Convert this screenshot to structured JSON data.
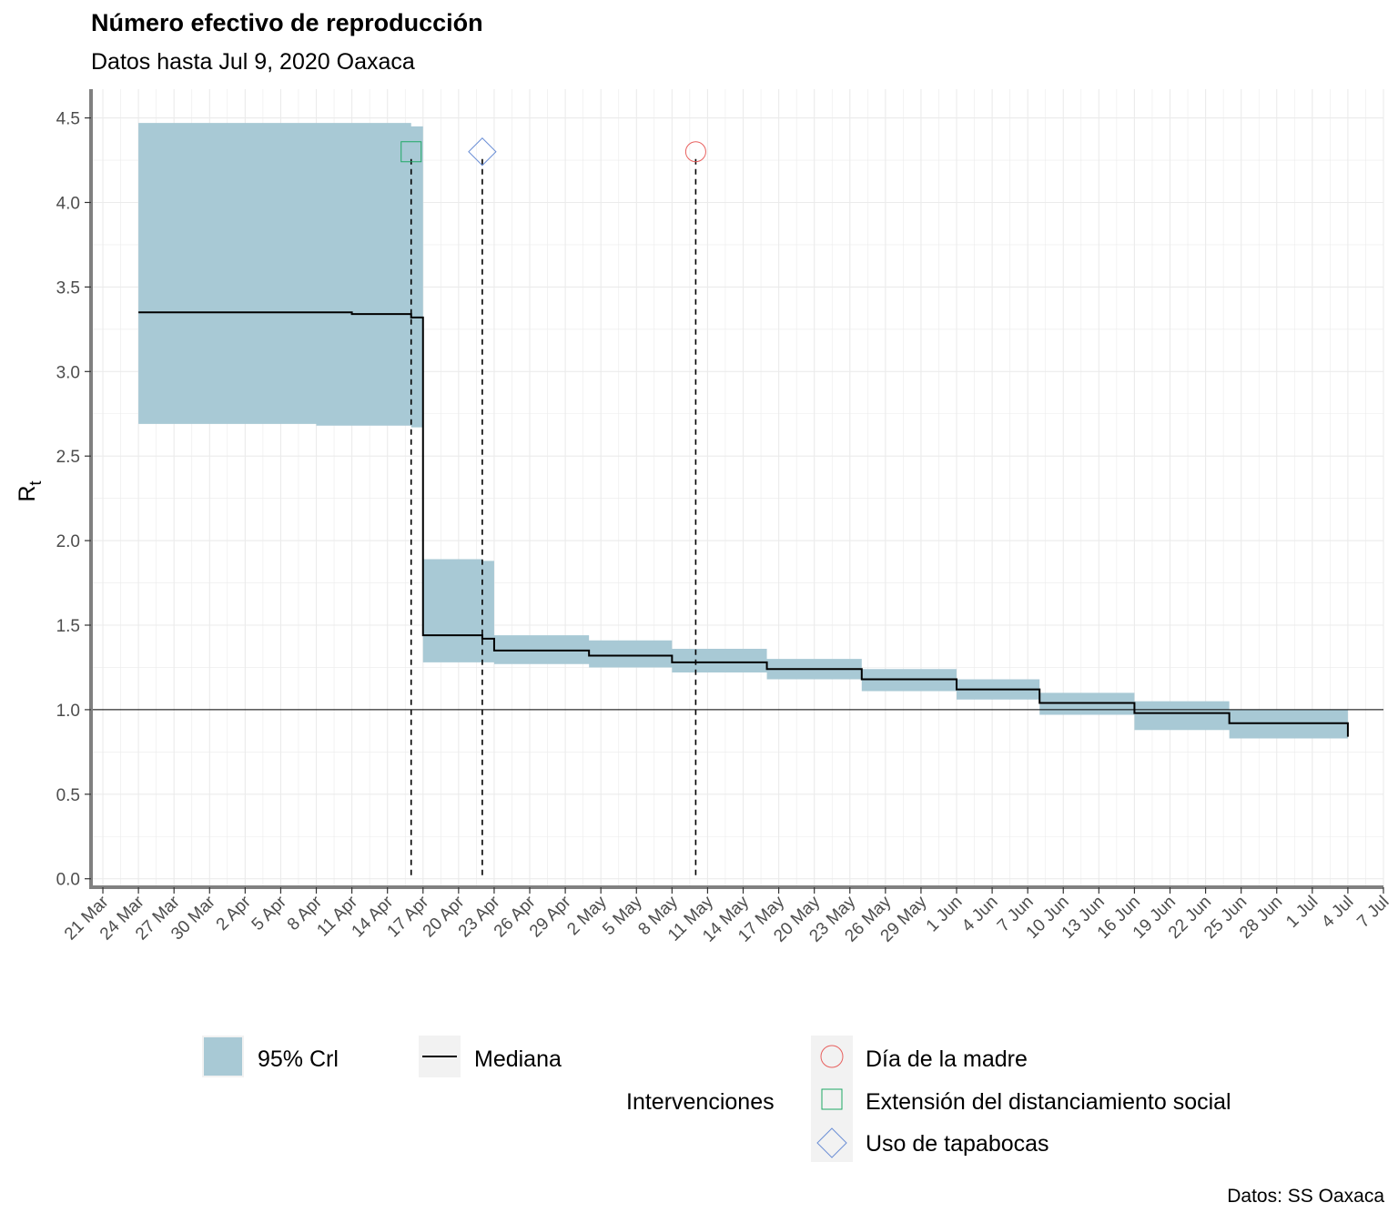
{
  "title": "Número efectivo de reproducción",
  "subtitle": "Datos hasta Jul  9, 2020 Oaxaca",
  "caption": "Datos: SS Oaxaca",
  "colors": {
    "ribbon": "#a8c9d5",
    "median": "#000000",
    "grid": "#ebebeb",
    "axis": "#808080",
    "madre": "#e8605e",
    "distanciamiento": "#1fa864",
    "tapabocas": "#6b8fd6"
  },
  "legend": {
    "ribbon_label": "95% Crl",
    "median_label": "Mediana",
    "interventions_title": "Intervenciones",
    "items": [
      "Día de la madre",
      "Extensión del distanciamiento social",
      "Uso de tapabocas"
    ]
  },
  "chart_data": {
    "type": "line",
    "ylabel": "R",
    "ylabel_subscript": "t",
    "xlabel": "",
    "ylim": [
      -0.05,
      4.67
    ],
    "xlim": [
      "2020-03-20",
      "2020-07-07"
    ],
    "y_ticks": [
      "0.0",
      "0.5",
      "1.0",
      "1.5",
      "2.0",
      "2.5",
      "3.0",
      "3.5",
      "4.0",
      "4.5"
    ],
    "x_ticks": [
      "21 Mar",
      "24 Mar",
      "27 Mar",
      "30 Mar",
      "2 Apr",
      "5 Apr",
      "8 Apr",
      "11 Apr",
      "14 Apr",
      "17 Apr",
      "20 Apr",
      "23 Apr",
      "26 Apr",
      "29 Apr",
      "2 May",
      "5 May",
      "8 May",
      "11 May",
      "14 May",
      "17 May",
      "20 May",
      "23 May",
      "26 May",
      "29 May",
      "1 Jun",
      "4 Jun",
      "7 Jun",
      "10 Jun",
      "13 Jun",
      "16 Jun",
      "19 Jun",
      "22 Jun",
      "25 Jun",
      "28 Jun",
      "1 Jul",
      "4 Jul",
      "7 Jul"
    ],
    "x_tick_dates": [
      "2020-03-21",
      "2020-03-24",
      "2020-03-27",
      "2020-03-30",
      "2020-04-02",
      "2020-04-05",
      "2020-04-08",
      "2020-04-11",
      "2020-04-14",
      "2020-04-17",
      "2020-04-20",
      "2020-04-23",
      "2020-04-26",
      "2020-04-29",
      "2020-05-02",
      "2020-05-05",
      "2020-05-08",
      "2020-05-11",
      "2020-05-14",
      "2020-05-17",
      "2020-05-20",
      "2020-05-23",
      "2020-05-26",
      "2020-05-29",
      "2020-06-01",
      "2020-06-04",
      "2020-06-07",
      "2020-06-10",
      "2020-06-13",
      "2020-06-16",
      "2020-06-19",
      "2020-06-22",
      "2020-06-25",
      "2020-06-28",
      "2020-07-01",
      "2020-07-04",
      "2020-07-07"
    ],
    "reference_line": 1.0,
    "series": [
      {
        "name": "Mediana",
        "x": [
          "2020-03-24",
          "2020-04-02",
          "2020-04-08",
          "2020-04-11",
          "2020-04-16",
          "2020-04-17",
          "2020-04-22",
          "2020-04-23",
          "2020-05-01",
          "2020-05-08",
          "2020-05-16",
          "2020-05-24",
          "2020-06-01",
          "2020-06-08",
          "2020-06-16",
          "2020-06-24",
          "2020-07-04"
        ],
        "median": [
          3.35,
          3.35,
          3.35,
          3.34,
          3.32,
          1.44,
          1.42,
          1.35,
          1.32,
          1.28,
          1.24,
          1.18,
          1.12,
          1.04,
          0.98,
          0.92,
          0.84
        ],
        "lower": [
          2.69,
          2.69,
          2.68,
          2.68,
          2.67,
          1.28,
          1.28,
          1.27,
          1.25,
          1.22,
          1.18,
          1.11,
          1.06,
          0.97,
          0.88,
          0.83,
          0.76
        ],
        "upper": [
          4.47,
          4.47,
          4.47,
          4.47,
          4.45,
          1.89,
          1.88,
          1.44,
          1.41,
          1.36,
          1.3,
          1.24,
          1.18,
          1.1,
          1.05,
          1.0,
          0.96
        ]
      }
    ],
    "interventions": [
      {
        "name": "Extensión del distanciamiento social",
        "date": "2020-04-16",
        "shape": "square"
      },
      {
        "name": "Uso de tapabocas",
        "date": "2020-04-22",
        "shape": "diamond"
      },
      {
        "name": "Día de la madre",
        "date": "2020-05-10",
        "shape": "circle"
      }
    ],
    "intervention_marker_y": 4.3,
    "legend_position": "bottom"
  }
}
